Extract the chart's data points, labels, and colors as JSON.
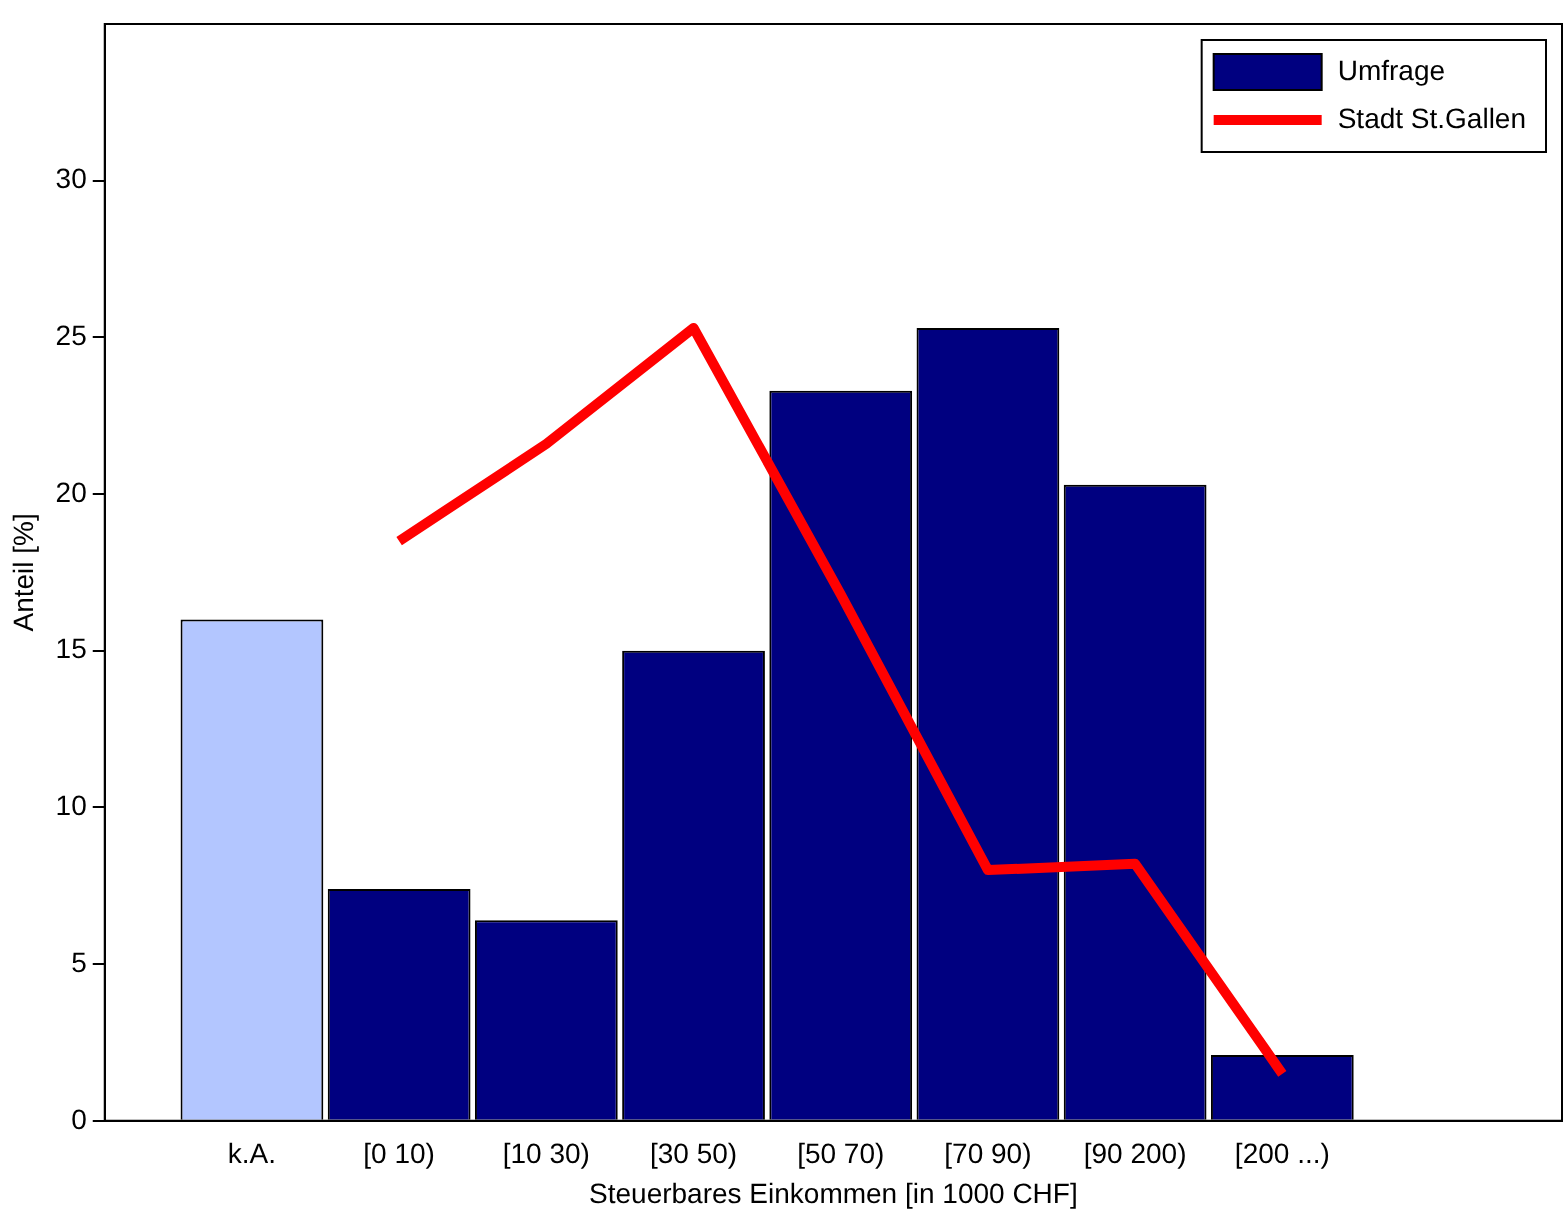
{
  "chart_data": {
    "type": "bar",
    "xlabel": "Steuerbares Einkommen [in 1000 CHF]",
    "ylabel": "Anteil [%]",
    "categories": [
      "k.A.",
      "[0 10)",
      "[10 30)",
      "[30 50)",
      "[50 70)",
      "[70 90)",
      "[90 200)",
      "[200 ...)"
    ],
    "series": [
      {
        "name": "Umfrage",
        "color": "#000080",
        "colors": [
          "#b3c6ff",
          "#000080",
          "#000080",
          "#000080",
          "#000080",
          "#000080",
          "#000080",
          "#000080"
        ],
        "values": [
          16,
          7.4,
          6.4,
          15,
          23.3,
          25.3,
          20.3,
          2.1
        ]
      },
      {
        "name": "Stadt St.Gallen",
        "type": "line",
        "color": "#ff0000",
        "values": [
          null,
          18.5,
          21.6,
          25.3,
          16.8,
          8.0,
          8.2,
          1.5
        ]
      }
    ],
    "ylim": [
      0,
      35
    ],
    "yticks": [
      0,
      5,
      10,
      15,
      20,
      25,
      30
    ],
    "grid": false,
    "legend": "top right",
    "marker": "none",
    "line_style": "solid"
  }
}
